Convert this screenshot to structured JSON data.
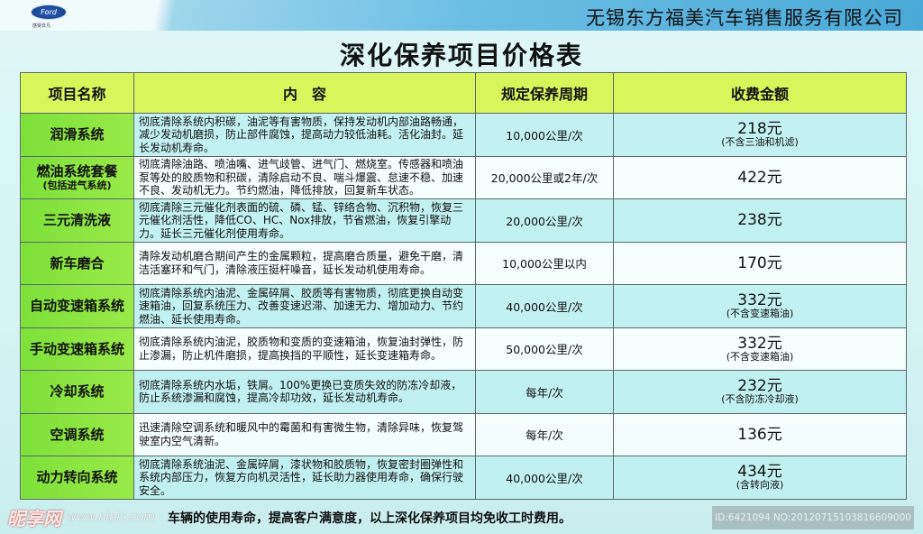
{
  "header": {
    "brand_logo": "Ford",
    "brand_slogan": "感受非凡",
    "company": "无锡东方福美汽车销售服务有限公司"
  },
  "title": "深化保养项目价格表",
  "table": {
    "columns": [
      "项目名称",
      "内　容",
      "规定保养周期",
      "收费金额"
    ],
    "rows": [
      {
        "name": "润滑系统",
        "sub": "",
        "content": "彻底清除系统内积碳，油泥等有害物质，保持发动机内部油路畅通，减少发动机磨损，防止部件腐蚀，提高动力较低油耗。活化油封。延长发动机寿命。",
        "cycle": "10,000公里/次",
        "price": "218元",
        "note": "(不含三油和机滤)"
      },
      {
        "name": "燃油系统套餐",
        "sub": "(包括进气系统)",
        "content": "彻底清除油路、喷油嘴、进气歧管、进气门、燃烧室。传感器和喷油泵等处的胶质物和积碳，清除启动不良、喘斗爆震、怠速不稳、加速不良、发动机无力。节约燃油，降低排放，回复新车状态。",
        "cycle": "20,000公里或2年/次",
        "price": "422元",
        "note": ""
      },
      {
        "name": "三元清洗液",
        "sub": "",
        "content": "彻底清除三元催化剂表面的硫、磷、锰、锌络合物、沉积物，恢复三元催化剂活性，降低CO、HC、Nox排放，节省燃油，恢复引擎动力。延长三元催化剂使用寿命。",
        "cycle": "20,000公里/次",
        "price": "238元",
        "note": ""
      },
      {
        "name": "新车磨合",
        "sub": "",
        "content": "清除发动机磨合期间产生的金属颗粒，提高磨合质量，避免干磨，清洁活塞环和气门，清除液压挺杆噪音，延长发动机使用寿命。",
        "cycle": "10,000公里以内",
        "price": "170元",
        "note": ""
      },
      {
        "name": "自动变速箱系统",
        "sub": "",
        "content": "彻底清除系统内油泥、金属碎屑、胶质等有害物质，彻底更换自动变速箱油，回复系统压力、改善变速迟滞、加速无力、增加动力、节约燃油、延长使用寿命。",
        "cycle": "40,000公里/次",
        "price": "332元",
        "note": "(不含变速箱油)"
      },
      {
        "name": "手动变速箱系统",
        "sub": "",
        "content": "彻底清除系统内油泥，胶质物和变质的变速箱油，恢复油封弹性，防止渗漏，防止机件磨损，提高换挡的平顺性，延长变速箱寿命。",
        "cycle": "50,000公里/次",
        "price": "332元",
        "note": "(不含变速箱油)"
      },
      {
        "name": "冷却系统",
        "sub": "",
        "content": "彻底清除系统内水垢，铁屑。100%更换已变质失效的防冻冷却液，防止系统渗漏和腐蚀，提高冷却功效，延长发动机寿命。",
        "cycle": "每年/次",
        "price": "232元",
        "note": "(不含防冻冷却液)"
      },
      {
        "name": "空调系统",
        "sub": "",
        "content": "迅速清除空调系统和暖风中的霉菌和有害微生物，清除异味，恢复驾驶室内空气清新。",
        "cycle": "每年/次",
        "price": "136元",
        "note": ""
      },
      {
        "name": "动力转向系统",
        "sub": "",
        "content": "彻底清除系统油泥、金属碎屑，漆状物和胶质物，恢复密封圈弹性和系统内部压力，恢复方向机灵活性，延长助力器使用寿命，确保行驶安全。",
        "cycle": "40,000公里/次",
        "price": "434元",
        "note": "(含转向液)"
      }
    ]
  },
  "footer": "车辆的使用寿命，提高客户满意度，以上深化保养项目均免收工时费用。",
  "watermark": {
    "logo": "昵享网",
    "url": "www.nipic.com",
    "id": "ID:6421094 NO:20120715103816609000"
  }
}
